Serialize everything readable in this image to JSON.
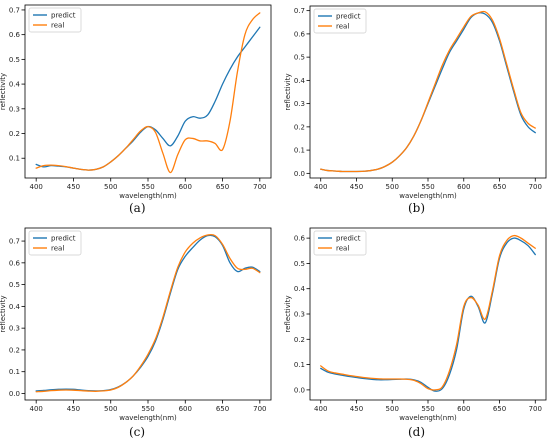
{
  "figure": {
    "background": "#ffffff",
    "axis_color": "#000000",
    "grid": false,
    "series_colors": {
      "predict": "#1f77b4",
      "real": "#ff7f0e"
    }
  },
  "chart_data": [
    {
      "type": "line",
      "caption": "(a)",
      "xlabel": "wavelength(nm)",
      "ylabel": "reflectivity",
      "xlim": [
        385,
        715
      ],
      "ylim": [
        0.02,
        0.72
      ],
      "xticks": [
        400,
        450,
        500,
        550,
        600,
        650,
        700
      ],
      "yticks": [
        0.1,
        0.2,
        0.3,
        0.4,
        0.5,
        0.6,
        0.7
      ],
      "ytick_labels": [
        "0.1",
        "0.2",
        "0.3",
        "0.4",
        "0.5",
        "0.6",
        "0.7"
      ],
      "legend": {
        "position": "top-left",
        "entries": [
          "predict",
          "real"
        ]
      },
      "x": [
        400,
        410,
        420,
        430,
        440,
        450,
        460,
        470,
        480,
        490,
        500,
        510,
        520,
        530,
        540,
        550,
        560,
        570,
        580,
        590,
        600,
        610,
        620,
        630,
        640,
        650,
        660,
        670,
        680,
        690,
        700
      ],
      "series": [
        {
          "name": "predict",
          "values": [
            0.075,
            0.065,
            0.07,
            0.068,
            0.065,
            0.06,
            0.055,
            0.052,
            0.055,
            0.065,
            0.085,
            0.11,
            0.14,
            0.17,
            0.205,
            0.228,
            0.215,
            0.18,
            0.15,
            0.19,
            0.25,
            0.268,
            0.262,
            0.275,
            0.33,
            0.4,
            0.46,
            0.51,
            0.55,
            0.59,
            0.63
          ]
        },
        {
          "name": "real",
          "values": [
            0.06,
            0.07,
            0.072,
            0.07,
            0.066,
            0.06,
            0.055,
            0.052,
            0.055,
            0.065,
            0.085,
            0.11,
            0.14,
            0.175,
            0.21,
            0.228,
            0.205,
            0.12,
            0.042,
            0.115,
            0.175,
            0.18,
            0.17,
            0.17,
            0.16,
            0.135,
            0.25,
            0.45,
            0.6,
            0.66,
            0.688
          ]
        }
      ]
    },
    {
      "type": "line",
      "caption": "(b)",
      "xlabel": "wavelength(nm)",
      "ylabel": "reflectivity",
      "xlim": [
        385,
        715
      ],
      "ylim": [
        -0.02,
        0.72
      ],
      "xticks": [
        400,
        450,
        500,
        550,
        600,
        650,
        700
      ],
      "yticks": [
        0.0,
        0.1,
        0.2,
        0.3,
        0.4,
        0.5,
        0.6,
        0.7
      ],
      "ytick_labels": [
        "0.0",
        "0.1",
        "0.2",
        "0.3",
        "0.4",
        "0.5",
        "0.6",
        "0.7"
      ],
      "legend": {
        "position": "top-left",
        "entries": [
          "predict",
          "real"
        ]
      },
      "x": [
        400,
        410,
        420,
        430,
        440,
        450,
        460,
        470,
        480,
        490,
        500,
        510,
        520,
        530,
        540,
        550,
        560,
        570,
        580,
        590,
        600,
        610,
        620,
        630,
        640,
        650,
        660,
        670,
        680,
        690,
        700
      ],
      "series": [
        {
          "name": "predict",
          "values": [
            0.018,
            0.012,
            0.01,
            0.008,
            0.008,
            0.008,
            0.009,
            0.012,
            0.018,
            0.03,
            0.048,
            0.075,
            0.11,
            0.16,
            0.225,
            0.3,
            0.375,
            0.45,
            0.52,
            0.57,
            0.62,
            0.67,
            0.69,
            0.685,
            0.65,
            0.57,
            0.46,
            0.35,
            0.25,
            0.2,
            0.175
          ]
        },
        {
          "name": "real",
          "values": [
            0.018,
            0.012,
            0.01,
            0.008,
            0.008,
            0.008,
            0.009,
            0.012,
            0.018,
            0.03,
            0.048,
            0.075,
            0.11,
            0.16,
            0.225,
            0.305,
            0.385,
            0.465,
            0.53,
            0.58,
            0.63,
            0.675,
            0.69,
            0.695,
            0.66,
            0.58,
            0.47,
            0.36,
            0.26,
            0.215,
            0.195
          ]
        }
      ]
    },
    {
      "type": "line",
      "caption": "(c)",
      "xlabel": "wavelength(nm)",
      "ylabel": "reflectivity",
      "xlim": [
        385,
        715
      ],
      "ylim": [
        -0.03,
        0.76
      ],
      "xticks": [
        400,
        450,
        500,
        550,
        600,
        650,
        700
      ],
      "yticks": [
        0.0,
        0.1,
        0.2,
        0.3,
        0.4,
        0.5,
        0.6,
        0.7
      ],
      "ytick_labels": [
        "0.0",
        "0.1",
        "0.2",
        "0.3",
        "0.4",
        "0.5",
        "0.6",
        "0.7"
      ],
      "legend": {
        "position": "top-left",
        "entries": [
          "predict",
          "real"
        ]
      },
      "x": [
        400,
        410,
        420,
        430,
        440,
        450,
        460,
        470,
        480,
        490,
        500,
        510,
        520,
        530,
        540,
        550,
        560,
        570,
        580,
        590,
        600,
        610,
        620,
        630,
        640,
        650,
        660,
        670,
        680,
        690,
        700
      ],
      "series": [
        {
          "name": "predict",
          "values": [
            0.012,
            0.014,
            0.017,
            0.019,
            0.02,
            0.019,
            0.016,
            0.013,
            0.012,
            0.013,
            0.018,
            0.03,
            0.05,
            0.08,
            0.12,
            0.17,
            0.24,
            0.34,
            0.46,
            0.57,
            0.63,
            0.67,
            0.705,
            0.725,
            0.72,
            0.68,
            0.6,
            0.56,
            0.575,
            0.58,
            0.56
          ]
        },
        {
          "name": "real",
          "values": [
            0.008,
            0.01,
            0.013,
            0.015,
            0.016,
            0.015,
            0.013,
            0.011,
            0.01,
            0.012,
            0.016,
            0.028,
            0.05,
            0.08,
            0.125,
            0.18,
            0.25,
            0.35,
            0.47,
            0.58,
            0.65,
            0.69,
            0.715,
            0.728,
            0.725,
            0.685,
            0.62,
            0.575,
            0.57,
            0.575,
            0.555
          ]
        }
      ]
    },
    {
      "type": "line",
      "caption": "(d)",
      "xlabel": "wavelength(nm)",
      "ylabel": "reflectivity",
      "xlim": [
        385,
        715
      ],
      "ylim": [
        -0.04,
        0.64
      ],
      "xticks": [
        400,
        450,
        500,
        550,
        600,
        650,
        700
      ],
      "yticks": [
        0.0,
        0.1,
        0.2,
        0.3,
        0.4,
        0.5,
        0.6
      ],
      "ytick_labels": [
        "0.0",
        "0.1",
        "0.2",
        "0.3",
        "0.4",
        "0.5",
        "0.6"
      ],
      "legend": {
        "position": "top-left",
        "entries": [
          "predict",
          "real"
        ]
      },
      "x": [
        400,
        410,
        420,
        430,
        440,
        450,
        460,
        470,
        480,
        490,
        500,
        510,
        520,
        530,
        540,
        550,
        560,
        570,
        580,
        590,
        600,
        610,
        620,
        630,
        640,
        650,
        660,
        670,
        680,
        690,
        700
      ],
      "series": [
        {
          "name": "predict",
          "values": [
            0.085,
            0.07,
            0.063,
            0.058,
            0.053,
            0.049,
            0.045,
            0.042,
            0.04,
            0.04,
            0.041,
            0.042,
            0.043,
            0.04,
            0.03,
            0.01,
            -0.005,
            0.005,
            0.06,
            0.16,
            0.32,
            0.37,
            0.33,
            0.265,
            0.38,
            0.52,
            0.58,
            0.6,
            0.59,
            0.57,
            0.535
          ]
        },
        {
          "name": "real",
          "values": [
            0.095,
            0.075,
            0.067,
            0.062,
            0.057,
            0.053,
            0.049,
            0.046,
            0.044,
            0.043,
            0.043,
            0.043,
            0.042,
            0.038,
            0.025,
            0.005,
            0.0,
            0.012,
            0.075,
            0.18,
            0.33,
            0.365,
            0.335,
            0.28,
            0.39,
            0.53,
            0.59,
            0.61,
            0.6,
            0.58,
            0.56
          ]
        }
      ]
    }
  ]
}
